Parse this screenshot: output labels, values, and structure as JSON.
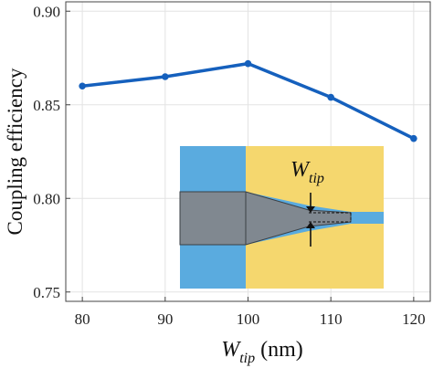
{
  "chart_data": {
    "type": "line",
    "x": [
      80,
      90,
      100,
      110,
      120
    ],
    "values": [
      0.86,
      0.865,
      0.872,
      0.854,
      0.832
    ],
    "xlim": [
      78,
      122
    ],
    "ylim": [
      0.745,
      0.905
    ],
    "x_ticks": [
      "80",
      "90",
      "100",
      "110",
      "120"
    ],
    "x_tick_values": [
      80,
      90,
      100,
      110,
      120
    ],
    "y_ticks": [
      "0.75",
      "0.80",
      "0.85",
      "0.90"
    ],
    "y_tick_values": [
      0.75,
      0.8,
      0.85,
      0.9
    ],
    "ylabel": "Coupling efficiency",
    "xlabel": {
      "symbol": "W",
      "subscript": "tip",
      "unit": " (nm)"
    },
    "grid": true,
    "line_color": "#1560bd"
  },
  "inset": {
    "label": {
      "symbol": "W",
      "subscript": "tip"
    },
    "colors": {
      "cladding_left": "#5aabdf",
      "cladding_right": "#f5d76e",
      "core": "#808890",
      "output_waveguide": "#5aabdf"
    }
  }
}
